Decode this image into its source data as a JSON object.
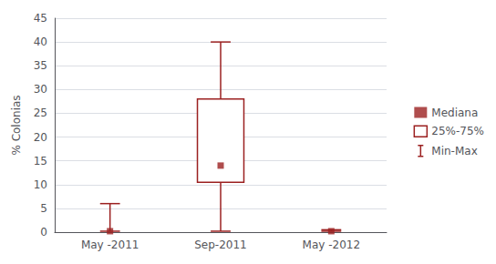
{
  "chart_data": {
    "type": "boxplot",
    "categories": [
      "May -2011",
      "Sep-2011",
      "May -2012"
    ],
    "ylabel": "% Colonias",
    "ylim": [
      0,
      45
    ],
    "yticks": [
      0,
      5,
      10,
      15,
      20,
      25,
      30,
      35,
      40,
      45
    ],
    "grid": true,
    "legend": "right",
    "series": [
      {
        "name": "Mediana",
        "type": "scatter",
        "marker": "square",
        "color": "#9B2020",
        "values": [
          0.2,
          14.0,
          0.2
        ]
      },
      {
        "name": "25%-75%",
        "type": "box",
        "color": "#9B2020",
        "values": [
          [
            0.2,
            0.2
          ],
          [
            10.5,
            28.0
          ],
          [
            0.2,
            0.2
          ]
        ]
      },
      {
        "name": "Min-Max",
        "type": "whisker",
        "color": "#9B2020",
        "values": [
          [
            0.2,
            6.0
          ],
          [
            0.2,
            40.0
          ],
          [
            0.2,
            0.5
          ]
        ]
      }
    ]
  }
}
